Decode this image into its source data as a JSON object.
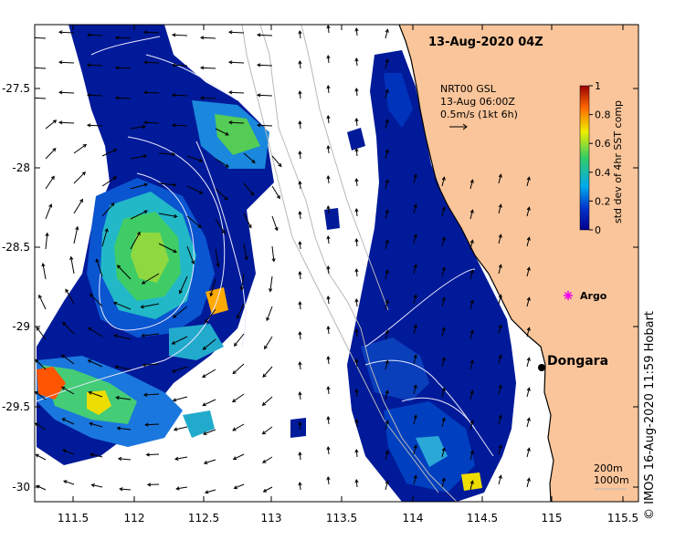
{
  "map": {
    "date_label": "13-Aug-2020 04Z",
    "legend_lines": [
      "NRT00 GSL",
      "13-Aug 06:00Z",
      "0.5m/s (1kt 6h)"
    ],
    "colorbar": {
      "title": "std dev of 4hr SST comp",
      "ticks": [
        "1",
        "0.8",
        "0.6",
        "0.4",
        "0.2",
        "0"
      ]
    },
    "x_ticks": [
      "111.5",
      "112",
      "112.5",
      "113",
      "113.5",
      "114",
      "114.5",
      "115",
      "115.5"
    ],
    "y_ticks": [
      "-27.5",
      "-28",
      "-28.5",
      "-29",
      "-29.5",
      "-30"
    ],
    "places": [
      {
        "name": "Argo",
        "marker": "magenta-star",
        "color": "#ee00ee"
      },
      {
        "name": "Dongara",
        "marker": "black-dot",
        "color": "#000000"
      }
    ],
    "scale_lines": [
      "200m",
      "1000m"
    ],
    "credit": "© IMOS 16-Aug-2020 11:59 Hobart",
    "land_color": "#fac59a",
    "colormap": [
      "#00008c",
      "#0033cc",
      "#00aaee",
      "#33cc66",
      "#eeee00",
      "#ff6600",
      "#990000"
    ]
  }
}
